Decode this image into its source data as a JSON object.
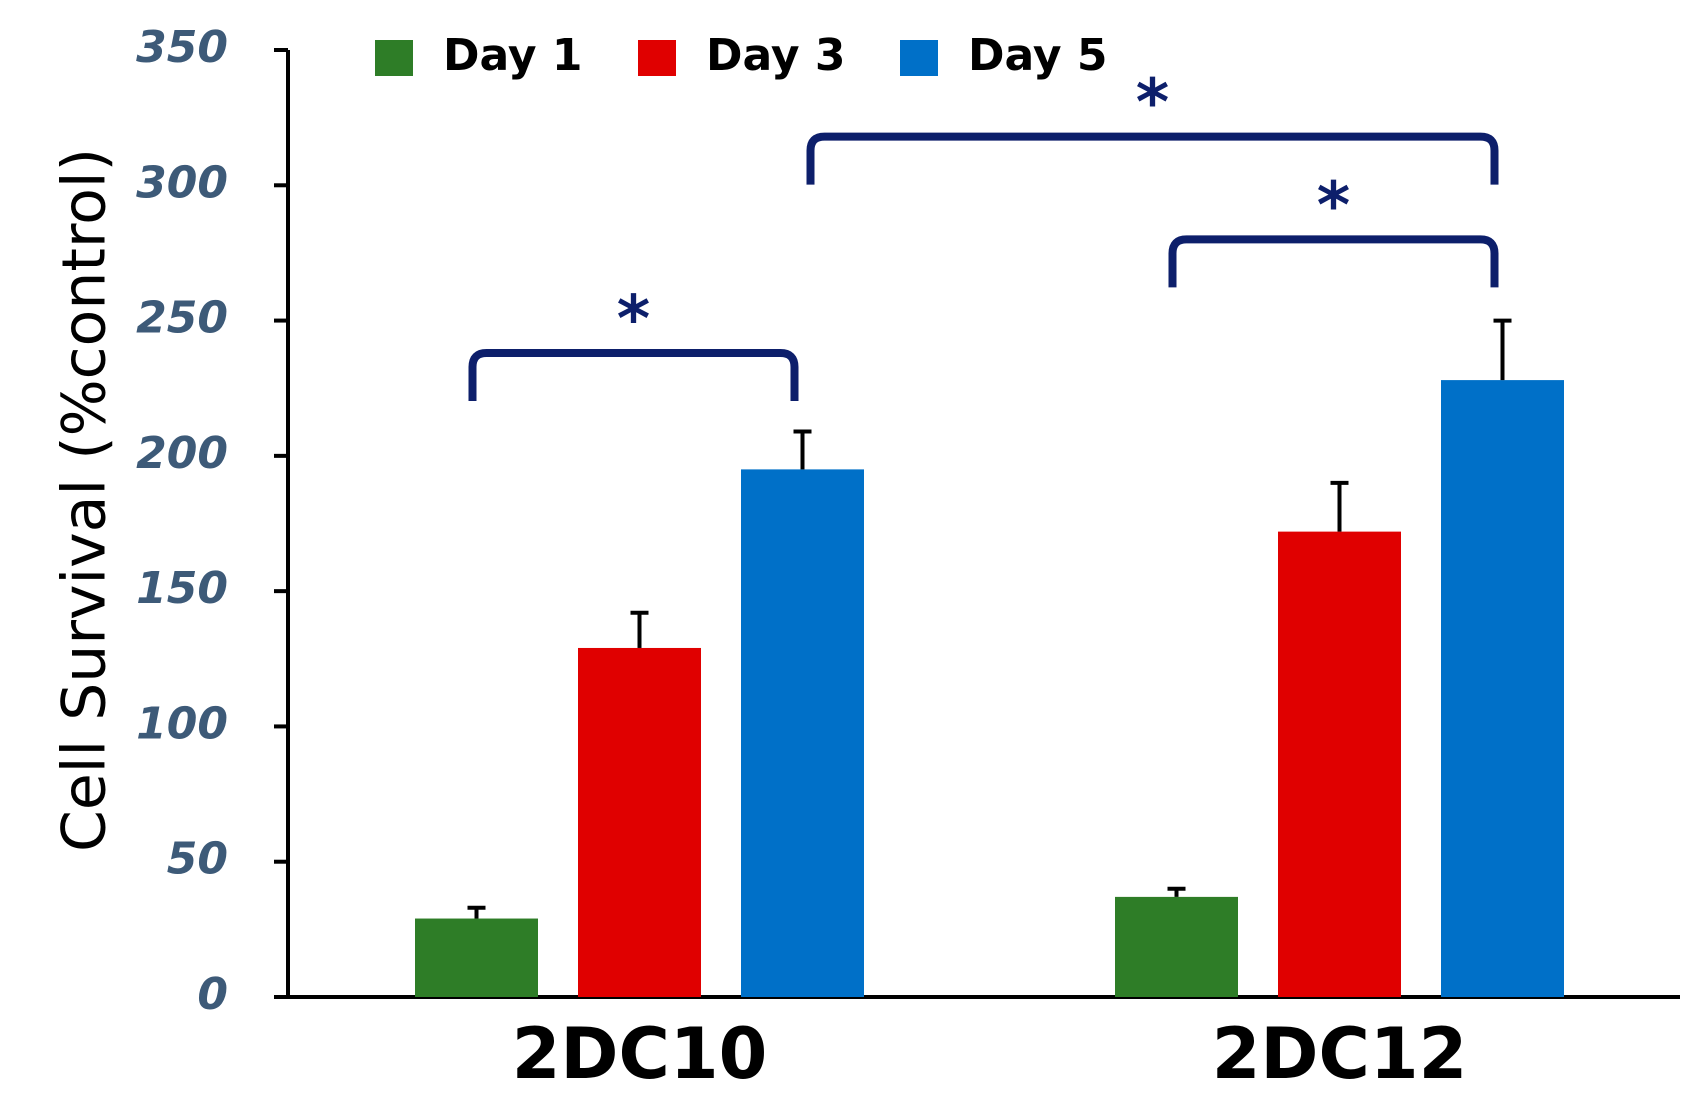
{
  "chart_data": {
    "type": "bar",
    "title": "",
    "xlabel": "",
    "ylabel": "Cell Survival (%control)",
    "ylim": [
      0,
      350
    ],
    "yticks": [
      0,
      50,
      100,
      150,
      200,
      250,
      300,
      350
    ],
    "ytick_labels": [
      "0",
      "50",
      "100",
      "150",
      "200",
      "250",
      "300",
      "350"
    ],
    "categories": [
      "2DC10",
      "2DC12"
    ],
    "series": [
      {
        "name": "Day 1",
        "color": "#2e7d27",
        "values": [
          29,
          37
        ],
        "errors": [
          4,
          3
        ]
      },
      {
        "name": "Day 3",
        "color": "#e00000",
        "values": [
          129,
          172
        ],
        "errors": [
          13,
          18
        ]
      },
      {
        "name": "Day 5",
        "color": "#0070c8",
        "values": [
          195,
          228
        ],
        "errors": [
          14,
          22
        ]
      }
    ],
    "legend_position": "top",
    "significance": [
      {
        "from": {
          "category": 0,
          "series": 0
        },
        "to": {
          "category": 0,
          "series": 2
        },
        "bracket_level": 238,
        "label": "*"
      },
      {
        "from": {
          "category": 1,
          "series": 0
        },
        "to": {
          "category": 1,
          "series": 2
        },
        "bracket_level": 280,
        "label": "*"
      },
      {
        "from": {
          "category": 0,
          "series": 2
        },
        "to": {
          "category": 1,
          "series": 2
        },
        "bracket_level": 318,
        "label": "*"
      }
    ],
    "colors": {
      "axis": "#000000",
      "tick_text": "#3d5a78",
      "bracket": "#0d1f6b"
    }
  }
}
